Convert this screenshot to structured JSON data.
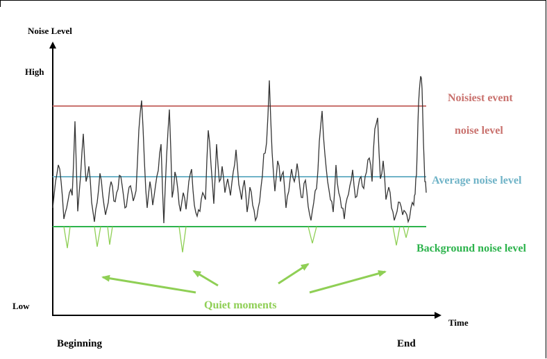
{
  "axis": {
    "y_title": "Noise Level",
    "y_high": "High",
    "y_low": "Low",
    "x_title": "Time",
    "x_start": "Beginning",
    "x_end": "End"
  },
  "reference_lines": {
    "noisiest": {
      "label_line1": "Noisiest event",
      "label_line2": "noise level",
      "color": "#c9726e"
    },
    "average": {
      "label": "Average noise level",
      "color": "#6fb3c7"
    },
    "background": {
      "label": "Background noise level",
      "color": "#2cb34c"
    }
  },
  "annotation": {
    "label": "Quiet moments",
    "color": "#8fcf55"
  },
  "signal_color": "#333333",
  "dip_color": "#8fcf55"
}
